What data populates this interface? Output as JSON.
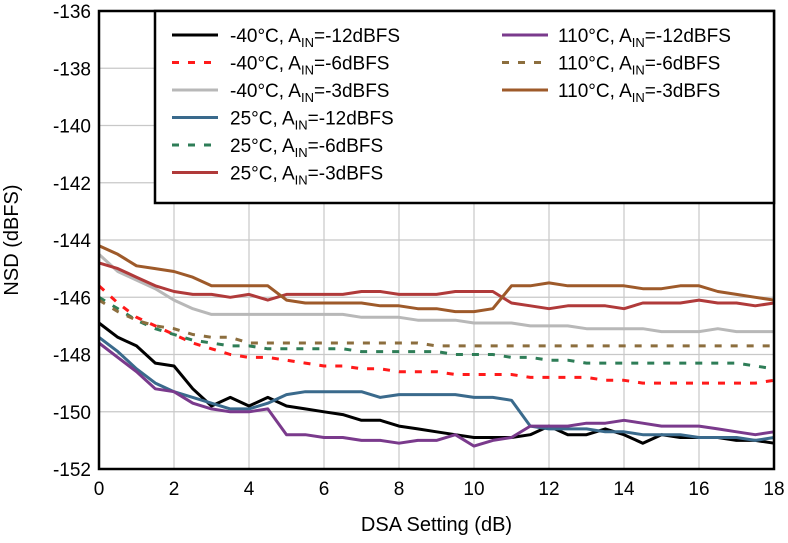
{
  "chart_data": {
    "type": "line",
    "xlabel": "DSA Setting (dB)",
    "ylabel": "NSD (dBFS)",
    "xlim": [
      0,
      18
    ],
    "ylim": [
      -152,
      -136
    ],
    "x_ticks": [
      "0",
      "2",
      "4",
      "6",
      "8",
      "10",
      "12",
      "14",
      "16",
      "18"
    ],
    "y_ticks": [
      "-136",
      "-138",
      "-140",
      "-142",
      "-144",
      "-146",
      "-148",
      "-150",
      "-152"
    ],
    "grid": true,
    "legend_position": "top-right",
    "series": [
      {
        "name": "-40°C, A<sub>IN</sub>=-12dBFS",
        "label_prefix": "-40°C, A",
        "label_sub": "IN",
        "label_suffix": "=-12dBFS",
        "color": "#000000",
        "dash": "solid",
        "x": [
          0,
          0.5,
          1,
          1.5,
          2,
          2.5,
          3,
          3.5,
          4,
          4.5,
          5,
          5.5,
          6,
          6.5,
          7,
          7.5,
          8,
          8.5,
          9,
          9.5,
          10,
          10.5,
          11,
          11.5,
          12,
          12.5,
          13,
          13.5,
          14,
          14.5,
          15,
          15.5,
          16,
          16.5,
          17,
          17.5,
          18
        ],
        "y": [
          -146.9,
          -147.4,
          -147.7,
          -148.3,
          -148.4,
          -149.2,
          -149.8,
          -149.5,
          -149.8,
          -149.5,
          -149.8,
          -149.9,
          -150.0,
          -150.1,
          -150.3,
          -150.3,
          -150.5,
          -150.6,
          -150.7,
          -150.8,
          -150.9,
          -150.9,
          -150.9,
          -150.8,
          -150.5,
          -150.8,
          -150.8,
          -150.6,
          -150.8,
          -151.1,
          -150.8,
          -150.9,
          -150.9,
          -150.9,
          -151.0,
          -151.0,
          -151.1
        ]
      },
      {
        "name": "-40°C, A<sub>IN</sub>=-6dBFS",
        "label_prefix": "-40°C, A",
        "label_sub": "IN",
        "label_suffix": "=-6dBFS",
        "color": "#ff1a1a",
        "dash": "dash",
        "x": [
          0,
          0.5,
          1,
          1.5,
          2,
          2.5,
          3,
          3.5,
          4,
          4.5,
          5,
          5.5,
          6,
          6.5,
          7,
          7.5,
          8,
          8.5,
          9,
          9.5,
          10,
          10.5,
          11,
          11.5,
          12,
          12.5,
          13,
          13.5,
          14,
          14.5,
          15,
          15.5,
          16,
          16.5,
          17,
          17.5,
          18
        ],
        "y": [
          -145.6,
          -146.2,
          -146.7,
          -147.0,
          -147.3,
          -147.6,
          -147.8,
          -148.0,
          -148.1,
          -148.1,
          -148.2,
          -148.3,
          -148.4,
          -148.4,
          -148.5,
          -148.5,
          -148.6,
          -148.6,
          -148.6,
          -148.7,
          -148.7,
          -148.7,
          -148.7,
          -148.8,
          -148.8,
          -148.8,
          -148.8,
          -148.9,
          -148.9,
          -149.0,
          -149.0,
          -149.0,
          -149.0,
          -149.0,
          -149.0,
          -149.0,
          -148.9
        ]
      },
      {
        "name": "-40°C, A<sub>IN</sub>=-3dBFS",
        "label_prefix": "-40°C, A",
        "label_sub": "IN",
        "label_suffix": "=-3dBFS",
        "color": "#b8b8b8",
        "dash": "solid",
        "x": [
          0,
          0.5,
          1,
          1.5,
          2,
          2.5,
          3,
          3.5,
          4,
          4.5,
          5,
          5.5,
          6,
          6.5,
          7,
          7.5,
          8,
          8.5,
          9,
          9.5,
          10,
          10.5,
          11,
          11.5,
          12,
          12.5,
          13,
          13.5,
          14,
          14.5,
          15,
          15.5,
          16,
          16.5,
          17,
          17.5,
          18
        ],
        "y": [
          -144.5,
          -145.1,
          -145.4,
          -145.7,
          -146.1,
          -146.4,
          -146.6,
          -146.6,
          -146.6,
          -146.6,
          -146.6,
          -146.6,
          -146.6,
          -146.6,
          -146.7,
          -146.7,
          -146.7,
          -146.8,
          -146.8,
          -146.8,
          -146.9,
          -146.9,
          -146.9,
          -147.0,
          -147.0,
          -147.0,
          -147.1,
          -147.1,
          -147.1,
          -147.1,
          -147.2,
          -147.2,
          -147.2,
          -147.1,
          -147.2,
          -147.2,
          -147.2
        ]
      },
      {
        "name": "25°C, A<sub>IN</sub>=-12dBFS",
        "label_prefix": "25°C, A",
        "label_sub": "IN",
        "label_suffix": "=-12dBFS",
        "color": "#3a6a8c",
        "dash": "solid",
        "x": [
          0,
          0.5,
          1,
          1.5,
          2,
          2.5,
          3,
          3.5,
          4,
          4.5,
          5,
          5.5,
          6,
          6.5,
          7,
          7.5,
          8,
          8.5,
          9,
          9.5,
          10,
          10.5,
          11,
          11.5,
          12,
          12.5,
          13,
          13.5,
          14,
          14.5,
          15,
          15.5,
          16,
          16.5,
          17,
          17.5,
          18
        ],
        "y": [
          -147.4,
          -147.9,
          -148.5,
          -149.0,
          -149.3,
          -149.5,
          -149.7,
          -149.9,
          -149.9,
          -149.7,
          -149.4,
          -149.3,
          -149.3,
          -149.3,
          -149.3,
          -149.5,
          -149.4,
          -149.4,
          -149.4,
          -149.4,
          -149.5,
          -149.5,
          -149.6,
          -150.5,
          -150.6,
          -150.6,
          -150.6,
          -150.7,
          -150.7,
          -150.8,
          -150.8,
          -150.8,
          -150.9,
          -150.9,
          -150.9,
          -151.0,
          -150.9
        ]
      },
      {
        "name": "25°C, A<sub>IN</sub>=-6dBFS",
        "label_prefix": "25°C, A",
        "label_sub": "IN",
        "label_suffix": "=-6dBFS",
        "color": "#2e7d57",
        "dash": "dash",
        "x": [
          0,
          0.5,
          1,
          1.5,
          2,
          2.5,
          3,
          3.5,
          4,
          4.5,
          5,
          5.5,
          6,
          6.5,
          7,
          7.5,
          8,
          8.5,
          9,
          9.5,
          10,
          10.5,
          11,
          11.5,
          12,
          12.5,
          13,
          13.5,
          14,
          14.5,
          15,
          15.5,
          16,
          16.5,
          17,
          17.5,
          18
        ],
        "y": [
          -146.0,
          -146.4,
          -146.8,
          -147.1,
          -147.3,
          -147.5,
          -147.6,
          -147.7,
          -147.7,
          -147.8,
          -147.8,
          -147.8,
          -147.8,
          -147.8,
          -147.9,
          -147.9,
          -147.9,
          -147.9,
          -147.9,
          -148.0,
          -148.0,
          -148.0,
          -148.1,
          -148.1,
          -148.2,
          -148.2,
          -148.3,
          -148.3,
          -148.3,
          -148.3,
          -148.3,
          -148.3,
          -148.3,
          -148.3,
          -148.3,
          -148.4,
          -148.5
        ]
      },
      {
        "name": "25°C, A<sub>IN</sub>=-3dBFS",
        "label_prefix": "25°C, A",
        "label_sub": "IN",
        "label_suffix": "=-3dBFS",
        "color": "#b03a3a",
        "dash": "solid",
        "x": [
          0,
          0.5,
          1,
          1.5,
          2,
          2.5,
          3,
          3.5,
          4,
          4.5,
          5,
          5.5,
          6,
          6.5,
          7,
          7.5,
          8,
          8.5,
          9,
          9.5,
          10,
          10.5,
          11,
          11.5,
          12,
          12.5,
          13,
          13.5,
          14,
          14.5,
          15,
          15.5,
          16,
          16.5,
          17,
          17.5,
          18
        ],
        "y": [
          -144.8,
          -145.0,
          -145.3,
          -145.6,
          -145.8,
          -145.9,
          -145.9,
          -146.0,
          -145.9,
          -146.1,
          -145.9,
          -145.9,
          -145.9,
          -145.9,
          -145.8,
          -145.8,
          -145.9,
          -145.9,
          -145.9,
          -145.8,
          -145.8,
          -145.8,
          -146.2,
          -146.3,
          -146.4,
          -146.3,
          -146.3,
          -146.3,
          -146.4,
          -146.2,
          -146.2,
          -146.2,
          -146.1,
          -146.2,
          -146.2,
          -146.3,
          -146.2
        ]
      },
      {
        "name": "110°C, A<sub>IN</sub>=-12dBFS",
        "label_prefix": "110°C, A",
        "label_sub": "IN",
        "label_suffix": "=-12dBFS",
        "color": "#7a3a8c",
        "dash": "solid",
        "x": [
          0,
          0.5,
          1,
          1.5,
          2,
          2.5,
          3,
          3.5,
          4,
          4.5,
          5,
          5.5,
          6,
          6.5,
          7,
          7.5,
          8,
          8.5,
          9,
          9.5,
          10,
          10.5,
          11,
          11.5,
          12,
          12.5,
          13,
          13.5,
          14,
          14.5,
          15,
          15.5,
          16,
          16.5,
          17,
          17.5,
          18
        ],
        "y": [
          -147.6,
          -148.1,
          -148.6,
          -149.2,
          -149.3,
          -149.7,
          -149.9,
          -150.0,
          -150.0,
          -149.9,
          -150.8,
          -150.8,
          -150.9,
          -150.9,
          -151.0,
          -151.0,
          -151.1,
          -151.0,
          -151.0,
          -150.8,
          -151.2,
          -151.0,
          -150.9,
          -150.5,
          -150.5,
          -150.5,
          -150.4,
          -150.4,
          -150.3,
          -150.4,
          -150.5,
          -150.5,
          -150.5,
          -150.6,
          -150.7,
          -150.8,
          -150.7
        ]
      },
      {
        "name": "110°C, A<sub>IN</sub>=-6dBFS",
        "label_prefix": "110°C, A",
        "label_sub": "IN",
        "label_suffix": "=-6dBFS",
        "color": "#8c6e3e",
        "dash": "dash",
        "x": [
          0,
          0.5,
          1,
          1.5,
          2,
          2.5,
          3,
          3.5,
          4,
          4.5,
          5,
          5.5,
          6,
          6.5,
          7,
          7.5,
          8,
          8.5,
          9,
          9.5,
          10,
          10.5,
          11,
          11.5,
          12,
          12.5,
          13,
          13.5,
          14,
          14.5,
          15,
          15.5,
          16,
          16.5,
          17,
          17.5,
          18
        ],
        "y": [
          -146.1,
          -146.5,
          -146.8,
          -147.0,
          -147.1,
          -147.3,
          -147.4,
          -147.4,
          -147.6,
          -147.6,
          -147.6,
          -147.6,
          -147.6,
          -147.6,
          -147.6,
          -147.6,
          -147.6,
          -147.6,
          -147.7,
          -147.7,
          -147.7,
          -147.7,
          -147.7,
          -147.7,
          -147.7,
          -147.7,
          -147.7,
          -147.7,
          -147.7,
          -147.7,
          -147.7,
          -147.7,
          -147.7,
          -147.7,
          -147.7,
          -147.7,
          -147.7
        ]
      },
      {
        "name": "110°C, A<sub>IN</sub>=-3dBFS",
        "label_prefix": "110°C, A",
        "label_sub": "IN",
        "label_suffix": "=-3dBFS",
        "color": "#9e5a2a",
        "dash": "solid",
        "x": [
          0,
          0.5,
          1,
          1.5,
          2,
          2.5,
          3,
          3.5,
          4,
          4.5,
          5,
          5.5,
          6,
          6.5,
          7,
          7.5,
          8,
          8.5,
          9,
          9.5,
          10,
          10.5,
          11,
          11.5,
          12,
          12.5,
          13,
          13.5,
          14,
          14.5,
          15,
          15.5,
          16,
          16.5,
          17,
          17.5,
          18
        ],
        "y": [
          -144.2,
          -144.5,
          -144.9,
          -145.0,
          -145.1,
          -145.3,
          -145.6,
          -145.6,
          -145.6,
          -145.6,
          -146.1,
          -146.2,
          -146.2,
          -146.2,
          -146.2,
          -146.3,
          -146.3,
          -146.4,
          -146.4,
          -146.5,
          -146.5,
          -146.4,
          -145.6,
          -145.6,
          -145.5,
          -145.6,
          -145.6,
          -145.6,
          -145.6,
          -145.7,
          -145.7,
          -145.6,
          -145.6,
          -145.8,
          -145.9,
          -146.0,
          -146.1
        ]
      }
    ]
  }
}
